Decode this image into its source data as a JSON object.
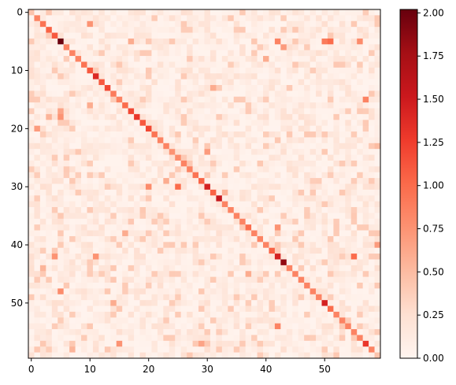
{
  "chart_data": {
    "type": "heatmap",
    "title": "",
    "xlabel": "",
    "ylabel": "",
    "size": 60,
    "colormap": "Reds",
    "value_range": [
      0,
      2.02
    ],
    "x_ticks": [
      "0",
      "10",
      "20",
      "30",
      "40",
      "50"
    ],
    "y_ticks": [
      "0",
      "10",
      "20",
      "30",
      "40",
      "50"
    ],
    "colorbar_ticks": [
      "0.00",
      "0.25",
      "0.50",
      "0.75",
      "1.00",
      "1.25",
      "1.50",
      "1.75",
      "2.00"
    ],
    "diagonal": [
      0.45,
      0.85,
      0.95,
      1.05,
      1.1,
      2.0,
      0.85,
      0.85,
      0.85,
      0.95,
      1.1,
      1.4,
      1.1,
      1.2,
      0.9,
      0.85,
      1.0,
      1.2,
      1.3,
      1.1,
      1.2,
      0.95,
      0.85,
      0.85,
      0.75,
      0.8,
      0.85,
      0.85,
      0.95,
      1.05,
      1.45,
      1.05,
      1.55,
      0.85,
      0.85,
      0.85,
      0.85,
      1.0,
      0.85,
      0.85,
      0.85,
      1.05,
      1.45,
      1.85,
      0.85,
      0.85,
      0.85,
      0.85,
      0.85,
      0.85,
      1.45,
      1.0,
      0.85,
      0.85,
      0.85,
      0.85,
      0.85,
      1.3,
      0.85,
      0.45
    ],
    "notable_cells": [
      [
        2,
        10,
        0.75
      ],
      [
        5,
        17,
        0.6
      ],
      [
        5,
        42,
        0.85
      ],
      [
        5,
        50,
        0.9
      ],
      [
        5,
        51,
        1.0
      ],
      [
        5,
        56,
        0.8
      ],
      [
        6,
        43,
        0.7
      ],
      [
        8,
        40,
        0.6
      ],
      [
        13,
        31,
        0.6
      ],
      [
        15,
        57,
        0.85
      ],
      [
        16,
        10,
        0.6
      ],
      [
        17,
        5,
        0.65
      ],
      [
        18,
        3,
        0.55
      ],
      [
        18,
        5,
        0.75
      ],
      [
        20,
        1,
        0.7
      ],
      [
        24,
        30,
        0.7
      ],
      [
        29,
        23,
        0.6
      ],
      [
        30,
        20,
        0.8
      ],
      [
        30,
        25,
        1.0
      ],
      [
        31,
        33,
        0.55
      ],
      [
        37,
        42,
        0.75
      ],
      [
        38,
        16,
        0.6
      ],
      [
        42,
        4,
        0.75
      ],
      [
        42,
        11,
        0.75
      ],
      [
        42,
        55,
        1.0
      ],
      [
        45,
        37,
        0.6
      ],
      [
        48,
        5,
        0.8
      ],
      [
        50,
        14,
        0.6
      ],
      [
        54,
        42,
        0.85
      ],
      [
        57,
        15,
        0.75
      ],
      [
        57,
        29,
        0.65
      ],
      [
        58,
        7,
        0.55
      ],
      [
        40,
        59,
        0.7
      ],
      [
        23,
        59,
        0.5
      ],
      [
        44,
        2,
        0.55
      ]
    ]
  }
}
